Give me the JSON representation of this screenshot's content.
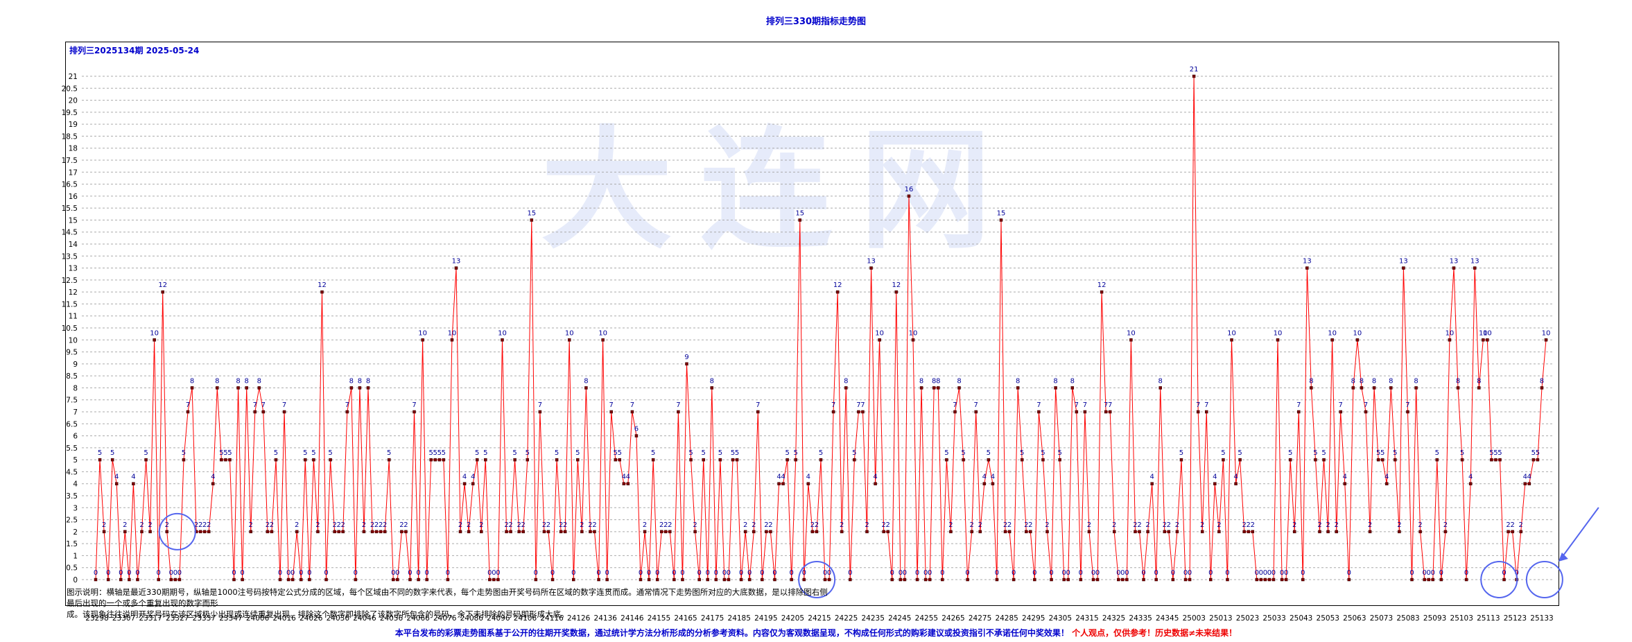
{
  "title": "排列三330期指标走势图",
  "issue_label": "排列三2025134期  2025-05-24",
  "watermark": "大连网",
  "description_lines": [
    "图示说明：横轴是最近330期期号，纵轴是1000注号码按特定公式分成的区域，每个区域由不同的数字来代表，每个走势图由开奖号码所在区域的数字连贯而成。通常情况下走势图所对应的大底数据，是以排除图右侧最后出现的一个或多个重复出现的数字而形",
    "成。该现象往往说明开奖号码在该区域极少出现或连续重复出现。排除这个数字即排除了该数字所包含的号码，余下未排除的号码即形成大底。"
  ],
  "footer": {
    "blue_text": "本平台发布的彩票走势图系基于公开的往期开奖数据，通过统计学方法分析形成的分析参考资料。内容仅为客观数据呈现，不构成任何形式的购彩建议或投资指引不承诺任何中奖效果！",
    "red_text": "个人观点，仅供参考！历史数据≠未来结果！"
  },
  "colors": {
    "line": "#ff0000",
    "marker_fill": "#7a0000",
    "value_label": "#000099",
    "title": "#0000cc",
    "grid": "#aaaaaa",
    "annotation": "#5566ee"
  },
  "annotations": {
    "circled_issues": [
      "23327",
      "24214",
      "25117",
      "25134"
    ],
    "arrow_target": "25134"
  },
  "chart_data": {
    "type": "line",
    "title": "排列三330期指标走势图",
    "xlabel": "",
    "ylabel": "",
    "ylim": [
      0,
      21.5
    ],
    "yticks": [
      0,
      0.5,
      1,
      1.5,
      2,
      2.5,
      3,
      3.5,
      4,
      4.5,
      5,
      5.5,
      6,
      6.5,
      7,
      7.5,
      8,
      8.5,
      9,
      9.5,
      10,
      10.5,
      11,
      11.5,
      12,
      12.5,
      13,
      13.5,
      14,
      14.5,
      15,
      15.5,
      16,
      16.5,
      17,
      17.5,
      18,
      18.5,
      19,
      19.5,
      20,
      20.5,
      21
    ],
    "grid": true,
    "xtick_labels": [
      "23298",
      "23307",
      "23317",
      "23327",
      "23337",
      "23347",
      "24006",
      "24016",
      "24026",
      "24036",
      "24046",
      "24056",
      "24066",
      "24076",
      "24086",
      "24096",
      "24106",
      "24116",
      "24126",
      "24136",
      "24146",
      "24155",
      "24165",
      "24175",
      "24185",
      "24195",
      "24205",
      "24215",
      "24225",
      "24235",
      "24245",
      "24255",
      "24265",
      "24275",
      "24285",
      "24295",
      "24305",
      "24315",
      "24325",
      "24335",
      "24345",
      "25003",
      "25013",
      "25023",
      "25033",
      "25043",
      "25053",
      "25063",
      "25073",
      "25083",
      "25093",
      "25103",
      "25113",
      "25123",
      "25133"
    ],
    "series": [
      {
        "values": [
          0,
          5,
          2,
          0,
          5,
          4,
          0,
          2,
          0,
          4,
          0,
          2,
          5,
          2,
          10,
          0,
          12,
          2,
          0,
          0,
          0,
          5,
          7,
          8,
          2,
          2,
          2,
          2,
          4,
          8,
          5,
          5,
          5,
          0,
          8,
          0,
          8,
          2,
          7,
          8,
          7,
          2,
          2,
          5,
          0,
          7,
          0,
          0,
          2,
          0,
          5,
          0,
          5,
          2,
          12,
          0,
          5,
          2,
          2,
          2,
          7,
          8,
          0,
          8,
          2,
          8,
          2,
          2,
          2,
          2,
          5,
          0,
          0,
          2,
          2,
          0,
          7,
          0,
          10,
          0,
          5,
          5,
          5,
          5,
          0,
          10,
          13,
          2,
          4,
          2,
          4,
          5,
          2,
          5,
          0,
          0,
          0,
          10,
          2,
          2,
          5,
          2,
          2,
          5,
          15,
          0,
          7,
          2,
          2,
          0,
          5,
          2,
          2,
          10,
          0,
          5,
          2,
          8,
          2,
          2,
          0,
          10,
          0,
          7,
          5,
          5,
          4,
          4,
          7,
          6,
          0,
          2,
          0,
          5,
          0,
          2,
          2,
          2,
          0,
          7,
          0,
          9,
          5,
          2,
          0,
          5,
          0,
          8,
          0,
          5,
          0,
          0,
          5,
          5,
          0,
          2,
          0,
          2,
          7,
          0,
          2,
          2,
          0,
          4,
          4,
          5,
          0,
          5,
          15,
          0,
          4,
          2,
          2,
          5,
          0,
          0,
          7,
          12,
          2,
          8,
          0,
          5,
          7,
          7,
          2,
          13,
          4,
          10,
          2,
          2,
          0,
          12,
          0,
          0,
          16,
          10,
          0,
          8,
          0,
          0,
          8,
          8,
          0,
          5,
          2,
          7,
          8,
          5,
          0,
          2,
          7,
          2,
          4,
          5,
          4,
          0,
          15,
          2,
          2,
          0,
          8,
          5,
          2,
          2,
          0,
          7,
          5,
          2,
          0,
          8,
          5,
          0,
          0,
          8,
          7,
          0,
          7,
          2,
          0,
          0,
          12,
          7,
          7,
          2,
          0,
          0,
          0,
          10,
          2,
          2,
          0,
          2,
          4,
          0,
          8,
          2,
          2,
          0,
          2,
          5,
          0,
          0,
          21,
          7,
          2,
          7,
          0,
          4,
          2,
          5,
          0,
          10,
          4,
          5,
          2,
          2,
          2,
          0,
          0,
          0,
          0,
          0,
          10,
          0,
          0,
          5,
          2,
          7,
          0,
          13,
          8,
          5,
          2,
          5,
          2,
          10,
          2,
          7,
          4,
          0,
          8,
          10,
          8,
          7,
          2,
          8,
          5,
          5,
          4,
          8,
          5,
          2,
          13,
          7,
          0,
          8,
          2,
          0,
          0,
          0,
          5,
          0,
          2,
          10,
          13,
          8,
          5,
          0,
          4,
          13,
          8,
          10,
          10,
          5,
          5,
          5,
          0,
          2,
          2,
          0,
          2,
          4,
          4,
          5,
          5,
          8,
          10
        ],
        "note": "333 plotted points read from chart; last point at issue 25134"
      }
    ]
  }
}
